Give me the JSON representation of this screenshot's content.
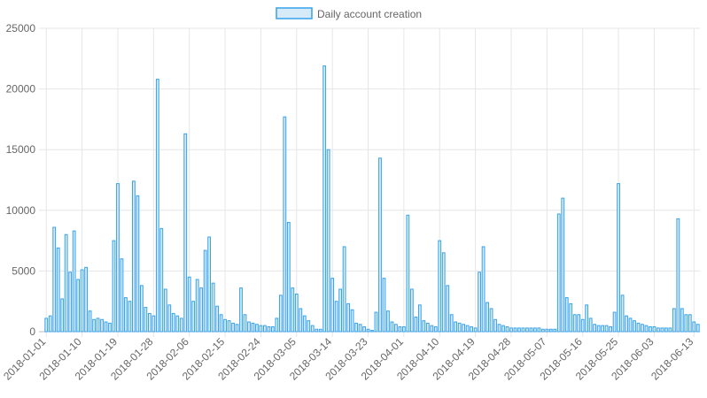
{
  "chart_data": {
    "type": "bar",
    "title": "",
    "xlabel": "",
    "ylabel": "",
    "ylim": [
      0,
      25000
    ],
    "y_ticks": [
      "0",
      "5000",
      "10000",
      "15000",
      "20000",
      "25000"
    ],
    "x_ticks": [
      "2018-01-01",
      "2018-01-10",
      "2018-01-19",
      "2018-01-28",
      "2018-02-06",
      "2018-02-15",
      "2018-02-24",
      "2018-03-05",
      "2018-03-14",
      "2018-03-23",
      "2018-04-01",
      "2018-04-10",
      "2018-04-19",
      "2018-04-28",
      "2018-05-07",
      "2018-05-16",
      "2018-05-25",
      "2018-06-03",
      "2018-06-13"
    ],
    "grid": true,
    "legend": "top",
    "colors": {
      "bar_fill": "#d6eaf8",
      "bar_stroke": "#36a2eb",
      "grid": "#e6e6e6",
      "text": "#666666"
    },
    "series": [
      {
        "name": "Daily account creation",
        "start_date": "2018-01-01",
        "values": [
          1100,
          1300,
          8600,
          6900,
          2700,
          8000,
          4900,
          8300,
          4300,
          5100,
          5300,
          1700,
          1000,
          1100,
          1000,
          800,
          700,
          7500,
          12200,
          6000,
          2800,
          2500,
          12400,
          11200,
          3800,
          2000,
          1500,
          1300,
          20800,
          8500,
          3500,
          2200,
          1500,
          1300,
          1100,
          16300,
          4500,
          2500,
          4300,
          3600,
          6700,
          7800,
          4000,
          2100,
          1400,
          1000,
          900,
          700,
          600,
          3600,
          1400,
          800,
          700,
          600,
          500,
          500,
          400,
          400,
          1100,
          3000,
          17700,
          9000,
          3600,
          3100,
          1900,
          1300,
          900,
          500,
          200,
          200,
          21900,
          15000,
          4400,
          2500,
          3500,
          7000,
          2300,
          1800,
          700,
          600,
          400,
          200,
          100,
          1600,
          14300,
          4400,
          1700,
          800,
          600,
          400,
          400,
          9600,
          3500,
          1200,
          2200,
          900,
          700,
          500,
          400,
          7500,
          6500,
          3800,
          1400,
          800,
          700,
          600,
          500,
          400,
          300,
          4900,
          7000,
          2400,
          1900,
          1000,
          600,
          500,
          400,
          300,
          300,
          300,
          300,
          300,
          300,
          300,
          300,
          200,
          200,
          200,
          200,
          9700,
          11000,
          2800,
          2300,
          1400,
          1400,
          1000,
          2200,
          1100,
          600,
          500,
          500,
          500,
          400,
          1600,
          12200,
          3000,
          1300,
          1100,
          900,
          700,
          600,
          500,
          400,
          400,
          300,
          300,
          300,
          300,
          1900,
          9300,
          1900,
          1400,
          1400,
          800,
          600
        ]
      }
    ]
  }
}
